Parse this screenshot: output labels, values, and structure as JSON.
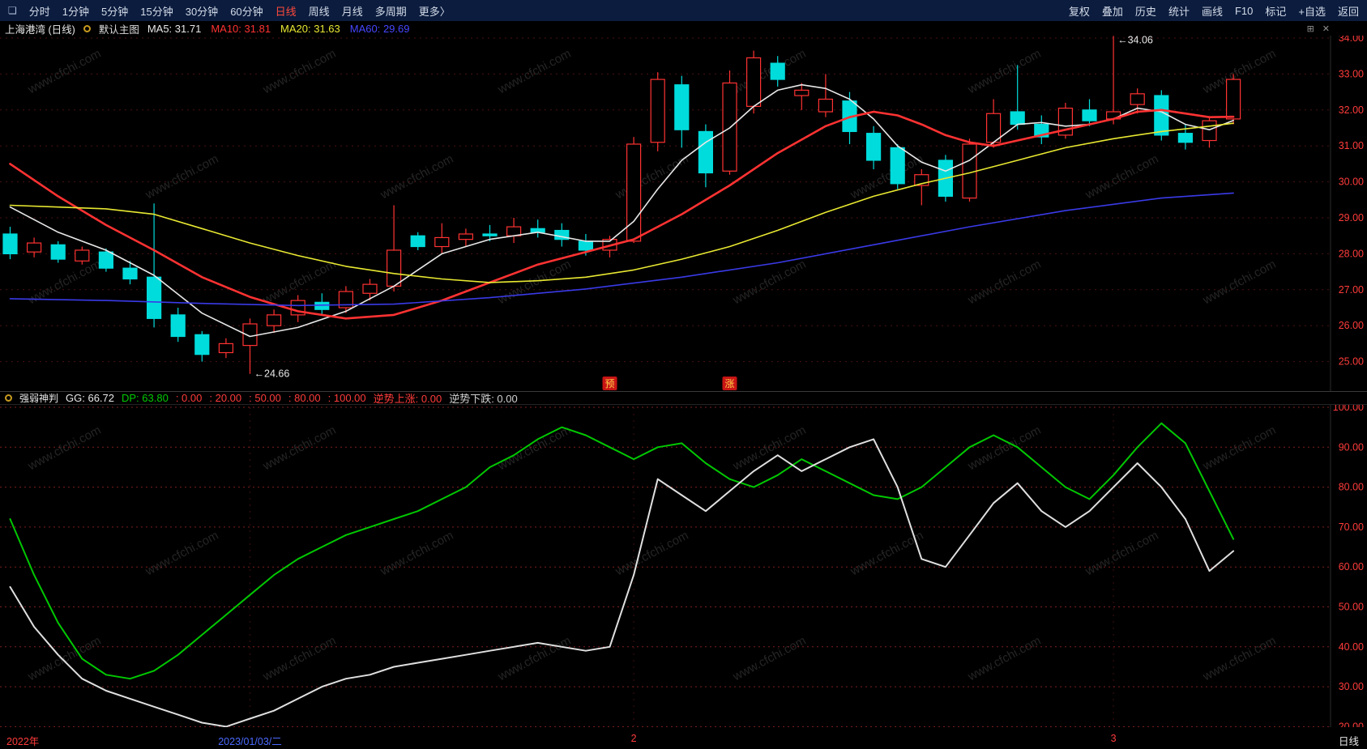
{
  "icons": {
    "app": "❏",
    "layout": "⊞",
    "close": "✕"
  },
  "watermark": "www.cfchi.com",
  "toolbar": {
    "periods": [
      {
        "label": "分时"
      },
      {
        "label": "1分钟"
      },
      {
        "label": "5分钟"
      },
      {
        "label": "15分钟"
      },
      {
        "label": "30分钟"
      },
      {
        "label": "60分钟"
      },
      {
        "label": "日线",
        "active": true
      },
      {
        "label": "周线"
      },
      {
        "label": "月线"
      },
      {
        "label": "多周期"
      },
      {
        "label": "更多〉"
      }
    ],
    "actions": [
      "复权",
      "叠加",
      "历史",
      "统计",
      "画线",
      "F10",
      "标记",
      "+自选",
      "返回"
    ]
  },
  "main_chart": {
    "title": "上海港湾 (日线)",
    "overlay_label": "默认主图",
    "ma_legend": [
      {
        "label": "MA5:",
        "value": "31.71",
        "color": "#e8e8e8"
      },
      {
        "label": "MA10:",
        "value": "31.81",
        "color": "#ff3232"
      },
      {
        "label": "MA20:",
        "value": "31.63",
        "color": "#e8e832"
      },
      {
        "label": "MA60:",
        "value": "29.69",
        "color": "#4646ff"
      }
    ],
    "y_ticks": [
      "34.00",
      "33.00",
      "32.00",
      "31.00",
      "30.00",
      "29.00",
      "28.00",
      "27.00",
      "26.00",
      "25.00"
    ],
    "high_annotation": "←34.06",
    "low_annotation": "←24.66",
    "event_badges": [
      {
        "label": "预",
        "i": 25
      },
      {
        "label": "涨",
        "i": 30
      }
    ]
  },
  "indicator": {
    "name": "强弱神判",
    "params": [
      {
        "text": "GG: 66.72",
        "color": "#e8e8e8"
      },
      {
        "text": "DP: 63.80",
        "color": "#00cc00"
      },
      {
        "text": ": 0.00",
        "color": "#ff3b3b"
      },
      {
        "text": ": 20.00",
        "color": "#ff3b3b"
      },
      {
        "text": ": 50.00",
        "color": "#ff3b3b"
      },
      {
        "text": ": 80.00",
        "color": "#ff3b3b"
      },
      {
        "text": ": 100.00",
        "color": "#ff3b3b"
      },
      {
        "text": "逆势上涨: 0.00",
        "color": "#ff3b3b"
      },
      {
        "text": "逆势下跌: 0.00",
        "color": "#d0d0d0"
      }
    ],
    "y_ticks": [
      "100.00",
      "90.00",
      "80.00",
      "70.00",
      "60.00",
      "50.00",
      "40.00",
      "30.00",
      "20.00"
    ]
  },
  "bottom_axis": {
    "markers": [
      {
        "i": 0,
        "label": "2022年",
        "color": "#ff3b3b"
      },
      {
        "i": 10,
        "label": "2023/01/03/二",
        "color": "#4a6aff"
      },
      {
        "i": 26,
        "label": "2",
        "color": "#ff3b3b"
      },
      {
        "i": 46,
        "label": "3",
        "color": "#ff3b3b"
      }
    ],
    "period_label": "日线"
  },
  "colors": {
    "up": "#ff3232",
    "down": "#00dcdc",
    "axis": "#ff3b3b",
    "grid_main": "#4a1212",
    "grid_ind": "#7d1f1f",
    "annotation": "#e8e8e8",
    "badge_bg": "#c81414",
    "badge_text": "#ffd24a",
    "watermark": "#4a4a4a"
  },
  "chart_data": [
    {
      "type": "candlestick",
      "title": "上海港湾 日线",
      "ylim": [
        24.5,
        34.2
      ],
      "y_tick_values": [
        34,
        33,
        32,
        31,
        30,
        29,
        28,
        27,
        26,
        25
      ],
      "candles": [
        [
          28.55,
          28.75,
          27.85,
          28.0
        ],
        [
          28.05,
          28.45,
          27.9,
          28.3
        ],
        [
          28.25,
          28.35,
          27.75,
          27.85
        ],
        [
          27.8,
          28.2,
          27.7,
          28.1
        ],
        [
          28.05,
          28.15,
          27.5,
          27.6
        ],
        [
          27.6,
          27.8,
          27.15,
          27.3
        ],
        [
          27.35,
          29.4,
          25.95,
          26.2
        ],
        [
          26.3,
          26.5,
          25.55,
          25.7
        ],
        [
          25.75,
          25.85,
          25.0,
          25.2
        ],
        [
          25.25,
          25.65,
          25.1,
          25.5
        ],
        [
          25.45,
          26.2,
          24.66,
          26.05
        ],
        [
          26.0,
          26.45,
          25.8,
          26.3
        ],
        [
          26.3,
          26.85,
          26.1,
          26.7
        ],
        [
          26.65,
          26.9,
          26.3,
          26.45
        ],
        [
          26.5,
          27.1,
          26.35,
          26.95
        ],
        [
          26.9,
          27.3,
          26.7,
          27.15
        ],
        [
          27.1,
          29.35,
          26.95,
          28.1
        ],
        [
          28.5,
          28.6,
          28.1,
          28.2
        ],
        [
          28.2,
          28.85,
          28.0,
          28.45
        ],
        [
          28.4,
          28.7,
          28.2,
          28.55
        ],
        [
          28.55,
          28.8,
          28.35,
          28.5
        ],
        [
          28.5,
          29.0,
          28.3,
          28.75
        ],
        [
          28.7,
          28.95,
          28.45,
          28.6
        ],
        [
          28.65,
          28.85,
          28.2,
          28.4
        ],
        [
          28.35,
          28.55,
          27.95,
          28.1
        ],
        [
          28.1,
          28.5,
          27.9,
          28.4
        ],
        [
          28.35,
          31.25,
          28.3,
          31.05
        ],
        [
          31.1,
          33.05,
          30.85,
          32.85
        ],
        [
          32.7,
          32.95,
          30.95,
          31.45
        ],
        [
          31.4,
          31.6,
          29.85,
          30.25
        ],
        [
          30.3,
          33.1,
          30.2,
          32.75
        ],
        [
          32.1,
          33.65,
          31.9,
          33.45
        ],
        [
          33.3,
          33.5,
          32.65,
          32.85
        ],
        [
          32.4,
          32.75,
          32.0,
          32.55
        ],
        [
          31.95,
          33.0,
          31.8,
          32.3
        ],
        [
          32.25,
          32.5,
          31.05,
          31.4
        ],
        [
          31.35,
          31.55,
          30.35,
          30.6
        ],
        [
          30.95,
          31.05,
          29.8,
          29.95
        ],
        [
          29.9,
          30.35,
          29.35,
          30.2
        ],
        [
          30.6,
          30.75,
          29.45,
          29.6
        ],
        [
          29.55,
          31.2,
          29.45,
          31.05
        ],
        [
          31.1,
          32.3,
          30.95,
          31.9
        ],
        [
          31.95,
          33.25,
          31.45,
          31.6
        ],
        [
          31.6,
          31.85,
          31.05,
          31.25
        ],
        [
          31.3,
          32.2,
          31.2,
          32.05
        ],
        [
          32.0,
          32.3,
          31.55,
          31.7
        ],
        [
          31.75,
          34.06,
          31.6,
          31.95
        ],
        [
          32.15,
          32.6,
          31.9,
          32.45
        ],
        [
          32.4,
          32.55,
          31.15,
          31.3
        ],
        [
          31.35,
          31.6,
          30.9,
          31.1
        ],
        [
          31.15,
          31.8,
          30.95,
          31.7
        ],
        [
          31.75,
          33.0,
          31.6,
          32.85
        ]
      ],
      "ma_series": [
        {
          "name": "MA5",
          "color": "#e8e8e8",
          "width": 1.6,
          "points": [
            [
              0,
              29.3
            ],
            [
              2,
              28.6
            ],
            [
              4,
              28.1
            ],
            [
              6,
              27.4
            ],
            [
              8,
              26.35
            ],
            [
              10,
              25.7
            ],
            [
              12,
              25.95
            ],
            [
              14,
              26.4
            ],
            [
              16,
              27.1
            ],
            [
              18,
              28.0
            ],
            [
              20,
              28.4
            ],
            [
              22,
              28.6
            ],
            [
              24,
              28.35
            ],
            [
              25,
              28.35
            ],
            [
              26,
              28.9
            ],
            [
              27,
              29.8
            ],
            [
              28,
              30.6
            ],
            [
              29,
              31.1
            ],
            [
              30,
              31.5
            ],
            [
              31,
              32.1
            ],
            [
              32,
              32.55
            ],
            [
              33,
              32.7
            ],
            [
              34,
              32.6
            ],
            [
              35,
              32.3
            ],
            [
              36,
              31.75
            ],
            [
              37,
              31.0
            ],
            [
              38,
              30.55
            ],
            [
              39,
              30.3
            ],
            [
              40,
              30.6
            ],
            [
              41,
              31.1
            ],
            [
              42,
              31.6
            ],
            [
              43,
              31.65
            ],
            [
              44,
              31.55
            ],
            [
              45,
              31.6
            ],
            [
              46,
              31.75
            ],
            [
              47,
              32.05
            ],
            [
              48,
              31.95
            ],
            [
              49,
              31.6
            ],
            [
              50,
              31.45
            ],
            [
              51,
              31.71
            ]
          ]
        },
        {
          "name": "MA10",
          "color": "#ff3232",
          "width": 2.6,
          "points": [
            [
              0,
              30.5
            ],
            [
              2,
              29.6
            ],
            [
              4,
              28.8
            ],
            [
              6,
              28.1
            ],
            [
              8,
              27.35
            ],
            [
              10,
              26.8
            ],
            [
              12,
              26.4
            ],
            [
              14,
              26.2
            ],
            [
              16,
              26.3
            ],
            [
              18,
              26.7
            ],
            [
              20,
              27.2
            ],
            [
              22,
              27.7
            ],
            [
              24,
              28.05
            ],
            [
              26,
              28.4
            ],
            [
              28,
              29.1
            ],
            [
              30,
              29.9
            ],
            [
              32,
              30.8
            ],
            [
              34,
              31.55
            ],
            [
              35,
              31.8
            ],
            [
              36,
              31.95
            ],
            [
              37,
              31.85
            ],
            [
              38,
              31.6
            ],
            [
              39,
              31.3
            ],
            [
              40,
              31.1
            ],
            [
              41,
              31.0
            ],
            [
              42,
              31.15
            ],
            [
              43,
              31.3
            ],
            [
              44,
              31.45
            ],
            [
              45,
              31.6
            ],
            [
              46,
              31.75
            ],
            [
              47,
              31.95
            ],
            [
              48,
              32.0
            ],
            [
              49,
              31.9
            ],
            [
              50,
              31.8
            ],
            [
              51,
              31.81
            ]
          ]
        },
        {
          "name": "MA20",
          "color": "#e8e832",
          "width": 1.6,
          "points": [
            [
              0,
              29.35
            ],
            [
              2,
              29.3
            ],
            [
              4,
              29.25
            ],
            [
              6,
              29.1
            ],
            [
              8,
              28.7
            ],
            [
              10,
              28.3
            ],
            [
              12,
              27.95
            ],
            [
              14,
              27.65
            ],
            [
              16,
              27.45
            ],
            [
              18,
              27.3
            ],
            [
              20,
              27.2
            ],
            [
              22,
              27.25
            ],
            [
              24,
              27.35
            ],
            [
              26,
              27.55
            ],
            [
              28,
              27.85
            ],
            [
              30,
              28.2
            ],
            [
              32,
              28.65
            ],
            [
              34,
              29.15
            ],
            [
              36,
              29.6
            ],
            [
              38,
              29.95
            ],
            [
              40,
              30.25
            ],
            [
              42,
              30.6
            ],
            [
              44,
              30.95
            ],
            [
              46,
              31.2
            ],
            [
              48,
              31.4
            ],
            [
              50,
              31.55
            ],
            [
              51,
              31.63
            ]
          ]
        },
        {
          "name": "MA60",
          "color": "#3a3ae8",
          "width": 1.6,
          "points": [
            [
              0,
              26.75
            ],
            [
              4,
              26.7
            ],
            [
              8,
              26.62
            ],
            [
              12,
              26.56
            ],
            [
              16,
              26.6
            ],
            [
              20,
              26.78
            ],
            [
              24,
              27.02
            ],
            [
              28,
              27.35
            ],
            [
              32,
              27.75
            ],
            [
              36,
              28.25
            ],
            [
              40,
              28.75
            ],
            [
              44,
              29.2
            ],
            [
              48,
              29.55
            ],
            [
              51,
              29.69
            ]
          ]
        }
      ]
    },
    {
      "type": "line",
      "title": "强弱神判",
      "ylim": [
        14,
        102
      ],
      "y_tick_values": [
        100,
        90,
        80,
        70,
        60,
        50,
        40,
        30,
        20
      ],
      "series": [
        {
          "name": "GG",
          "color": "#00c800",
          "values": [
            72,
            58,
            46,
            37,
            33,
            32,
            34,
            38,
            43,
            48,
            53,
            58,
            62,
            65,
            68,
            70,
            72,
            74,
            77,
            80,
            85,
            88,
            92,
            95,
            93,
            90,
            87,
            90,
            91,
            86,
            82,
            80,
            83,
            87,
            84,
            81,
            78,
            77,
            80,
            85,
            90,
            93,
            90,
            85,
            80,
            77,
            83,
            90,
            96,
            91,
            79,
            67
          ]
        },
        {
          "name": "DP",
          "color": "#e0e0e0",
          "values": [
            55,
            45,
            38,
            32,
            29,
            27,
            25,
            23,
            21,
            20,
            22,
            24,
            27,
            30,
            32,
            33,
            35,
            36,
            37,
            38,
            39,
            40,
            41,
            40,
            39,
            40,
            58,
            82,
            78,
            74,
            79,
            84,
            88,
            84,
            87,
            90,
            92,
            80,
            62,
            60,
            68,
            76,
            81,
            74,
            70,
            74,
            80,
            86,
            80,
            72,
            59,
            64
          ]
        }
      ]
    }
  ]
}
